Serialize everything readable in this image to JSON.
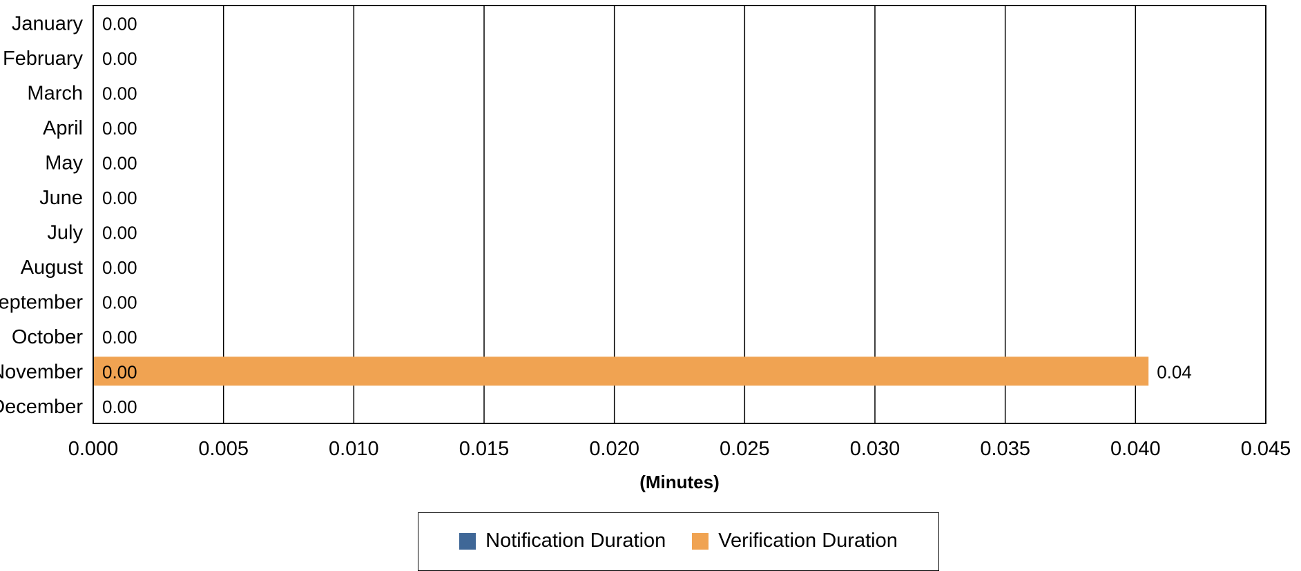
{
  "chart_data": {
    "type": "bar",
    "orientation": "horizontal",
    "title": "",
    "xlabel": "(Minutes)",
    "ylabel": "",
    "xlim": [
      0,
      0.045
    ],
    "x_ticks": [
      "0.000",
      "0.005",
      "0.010",
      "0.015",
      "0.020",
      "0.025",
      "0.030",
      "0.035",
      "0.040",
      "0.045"
    ],
    "categories": [
      "January",
      "February",
      "March",
      "April",
      "May",
      "June",
      "July",
      "August",
      "September",
      "October",
      "November",
      "December"
    ],
    "series": [
      {
        "name": "Notification Duration",
        "color": "#3f6797",
        "values": [
          0,
          0,
          0,
          0,
          0,
          0,
          0,
          0,
          0,
          0,
          0,
          0
        ],
        "labels": [
          "0.00",
          "0.00",
          "0.00",
          "0.00",
          "0.00",
          "0.00",
          "0.00",
          "0.00",
          "0.00",
          "0.00",
          "0.00",
          "0.00"
        ]
      },
      {
        "name": "Verification Duration",
        "color": "#f0a352",
        "values": [
          0,
          0,
          0,
          0,
          0,
          0,
          0,
          0,
          0,
          0,
          0.0405,
          0
        ],
        "labels": [
          "",
          "",
          "",
          "",
          "",
          "",
          "",
          "",
          "",
          "",
          "0.04",
          ""
        ]
      }
    ],
    "grid": "vertical",
    "legend_position": "bottom"
  }
}
